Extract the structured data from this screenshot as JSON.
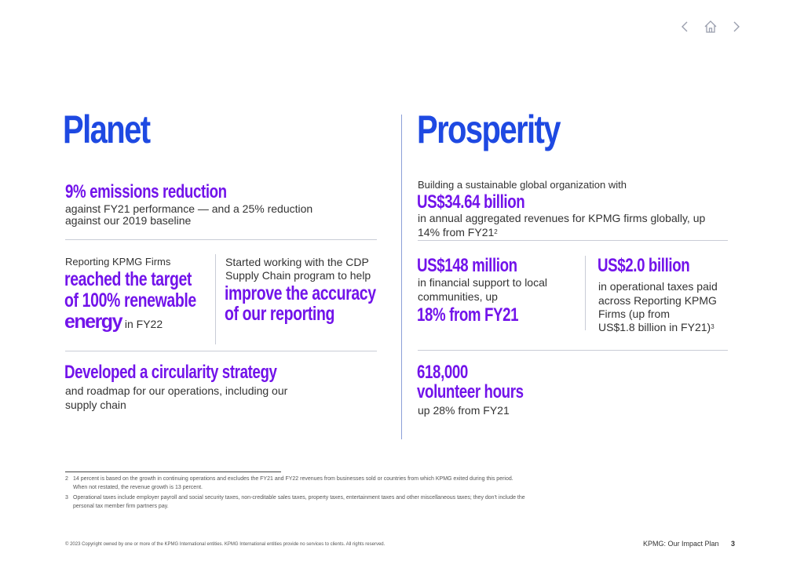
{
  "nav": {
    "prev_icon": "chevron-left-icon",
    "home_icon": "home-icon",
    "next_icon": "chevron-right-icon"
  },
  "planet": {
    "title": "Planet",
    "emissions_headline": "9% emissions reduction",
    "emissions_line1": "against FY21 performance — and a 25% reduction",
    "emissions_line2": "against our 2019 baseline",
    "renewable_intro": "Reporting KPMG Firms",
    "renewable_h1": "reached the target",
    "renewable_h2": "of 100% renewable",
    "renewable_h3": "energy",
    "renewable_suffix": " in FY22",
    "cdp_line1": "Started working with the CDP",
    "cdp_line2": "Supply Chain program to help",
    "cdp_h1": "improve the accuracy",
    "cdp_h2": "of  our reporting",
    "circ_headline": "Developed a circularity strategy",
    "circ_line1": "and roadmap for our operations, including our",
    "circ_line2": "supply chain"
  },
  "prosperity": {
    "title": "Prosperity",
    "intro": "Building a sustainable global organization with",
    "revenue_headline": "US$34.64 billion",
    "revenue_line1": "in annual aggregated revenues for KPMG firms globally, up",
    "revenue_line2": "14% from FY21",
    "revenue_sup": "2",
    "support_headline": "US$148 million",
    "support_line1": "in financial support to local",
    "support_line2": "communities, up",
    "support_pct": "18% from FY21",
    "taxes_headline": "US$2.0 billion",
    "taxes_line1": "in operational taxes paid",
    "taxes_line2": "across Reporting KPMG",
    "taxes_line3": "Firms (up from",
    "taxes_line4": "US$1.8 billion in FY21)",
    "taxes_sup": "3",
    "volunteer_h1": "618,000",
    "volunteer_h2": "volunteer hours",
    "volunteer_line": "up 28% from FY21"
  },
  "footnotes": {
    "fn2_num": "2",
    "fn2_line1": "14 percent is based on the growth in continuing operations and excludes the FY21 and FY22 revenues from businesses sold or countries from which KPMG exited during this period.",
    "fn2_line2": "When not restated, the revenue growth is 13 percent.",
    "fn3_num": "3",
    "fn3_line1": "Operational taxes include employer payroll and social security taxes, non-creditable sales taxes, property taxes, entertainment taxes and other miscellaneous taxes; they don't include the",
    "fn3_line2": "personal tax member firm partners pay."
  },
  "footer": {
    "copyright": "© 2023 Copyright owned by one or more of the KPMG International entities. KPMG International entities provide no services to clients. All rights reserved.",
    "doc_title": "KPMG: Our Impact Plan",
    "page_number": "3"
  },
  "colors": {
    "blue": "#1e49e2",
    "purple": "#7213ea"
  }
}
